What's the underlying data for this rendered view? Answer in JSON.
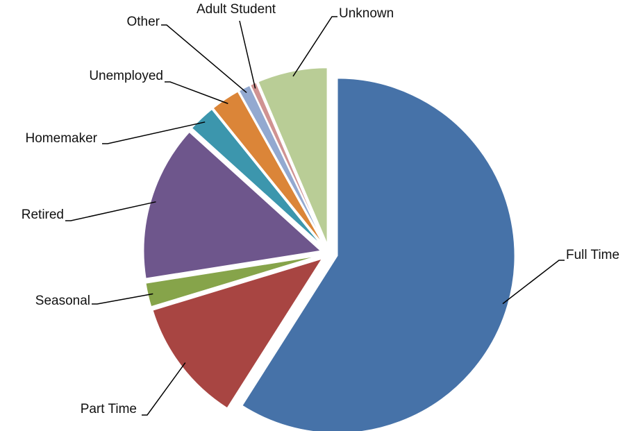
{
  "chart_data": {
    "type": "pie",
    "categories": [
      "Full Time",
      "Part Time",
      "Seasonal",
      "Retired",
      "Homemaker",
      "Unemployed",
      "Other",
      "Adult Student",
      "Unknown"
    ],
    "values": [
      59,
      11.3,
      2.2,
      14.2,
      2.5,
      2.7,
      1.1,
      0.6,
      6.4
    ],
    "colors": [
      "#4672a8",
      "#a84542",
      "#86a44a",
      "#6e568c",
      "#3c96ad",
      "#db8538",
      "#93a9d0",
      "#d09392",
      "#b9cd96"
    ]
  }
}
